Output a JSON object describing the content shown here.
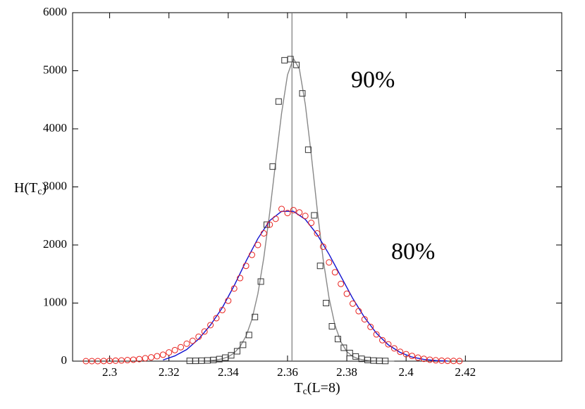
{
  "chart_data": {
    "type": "scatter",
    "xlabel": [
      "T",
      "c",
      "(L=8)"
    ],
    "ylabel": [
      "H(T",
      "c",
      ")"
    ],
    "annotations": [
      "90%",
      "80%"
    ],
    "xlim": [
      2.2875,
      2.4525
    ],
    "ylim": [
      0,
      6000
    ],
    "xticks": [
      2.3,
      2.32,
      2.34,
      2.36,
      2.38,
      2.4,
      2.42
    ],
    "yticks": [
      0,
      1000,
      2000,
      3000,
      4000,
      5000,
      6000
    ],
    "vline": 2.3615,
    "vline_color": "#777",
    "series": [
      {
        "marker": "square",
        "color": "#333",
        "x": [
          2.327,
          2.329,
          2.331,
          2.333,
          2.335,
          2.337,
          2.339,
          2.341,
          2.343,
          2.345,
          2.347,
          2.349,
          2.351,
          2.353,
          2.355,
          2.357,
          2.359,
          2.361,
          2.363,
          2.365,
          2.367,
          2.369,
          2.371,
          2.373,
          2.375,
          2.377,
          2.379,
          2.381,
          2.383,
          2.385,
          2.387,
          2.389,
          2.391,
          2.393
        ],
        "values": [
          5,
          5,
          8,
          12,
          20,
          35,
          60,
          100,
          170,
          280,
          450,
          760,
          1370,
          2350,
          3350,
          4470,
          5180,
          5200,
          5100,
          4610,
          3640,
          2510,
          1640,
          1000,
          600,
          380,
          230,
          140,
          80,
          40,
          20,
          10,
          5,
          3
        ]
      },
      {
        "marker": "circle",
        "color": "#e8201c",
        "x": [
          2.292,
          2.294,
          2.296,
          2.298,
          2.3,
          2.302,
          2.304,
          2.306,
          2.308,
          2.31,
          2.312,
          2.314,
          2.316,
          2.318,
          2.32,
          2.322,
          2.324,
          2.326,
          2.328,
          2.33,
          2.332,
          2.334,
          2.336,
          2.338,
          2.34,
          2.342,
          2.344,
          2.346,
          2.348,
          2.35,
          2.352,
          2.354,
          2.356,
          2.358,
          2.36,
          2.362,
          2.364,
          2.366,
          2.368,
          2.37,
          2.372,
          2.374,
          2.376,
          2.378,
          2.38,
          2.382,
          2.384,
          2.386,
          2.388,
          2.39,
          2.392,
          2.394,
          2.396,
          2.398,
          2.4,
          2.402,
          2.404,
          2.406,
          2.408,
          2.41,
          2.412,
          2.414,
          2.416,
          2.418
        ],
        "values": [
          0,
          0,
          0,
          2,
          5,
          8,
          12,
          18,
          25,
          35,
          50,
          65,
          85,
          110,
          150,
          190,
          240,
          300,
          350,
          420,
          510,
          620,
          740,
          880,
          1040,
          1250,
          1430,
          1640,
          1830,
          2000,
          2200,
          2350,
          2450,
          2620,
          2550,
          2600,
          2560,
          2500,
          2380,
          2200,
          1970,
          1700,
          1530,
          1330,
          1160,
          990,
          860,
          720,
          590,
          460,
          360,
          290,
          220,
          160,
          120,
          90,
          60,
          40,
          25,
          15,
          8,
          5,
          3,
          1
        ]
      }
    ],
    "curves": [
      {
        "color": "#888",
        "x": [
          2.326,
          2.328,
          2.33,
          2.332,
          2.334,
          2.336,
          2.338,
          2.34,
          2.342,
          2.344,
          2.346,
          2.348,
          2.35,
          2.352,
          2.354,
          2.356,
          2.358,
          2.36,
          2.362,
          2.364,
          2.366,
          2.368,
          2.37,
          2.372,
          2.374,
          2.376,
          2.378,
          2.38,
          2.382,
          2.384,
          2.386,
          2.388,
          2.39,
          2.392,
          2.394,
          2.396
        ],
        "values": [
          0,
          0,
          2,
          5,
          10,
          20,
          40,
          75,
          140,
          250,
          430,
          720,
          1160,
          1780,
          2560,
          3430,
          4270,
          4930,
          5210,
          5030,
          4420,
          3560,
          2620,
          1760,
          1090,
          620,
          330,
          165,
          80,
          38,
          17,
          8,
          3,
          1,
          0,
          0
        ]
      },
      {
        "color": "#1010d0",
        "x": [
          2.318,
          2.322,
          2.326,
          2.33,
          2.334,
          2.338,
          2.342,
          2.346,
          2.35,
          2.354,
          2.358,
          2.362,
          2.366,
          2.37,
          2.374,
          2.378,
          2.382,
          2.386,
          2.39,
          2.394,
          2.398,
          2.402,
          2.406,
          2.41,
          2.414
        ],
        "values": [
          20,
          90,
          200,
          380,
          620,
          920,
          1300,
          1720,
          2110,
          2420,
          2580,
          2580,
          2440,
          2180,
          1840,
          1460,
          1080,
          750,
          480,
          280,
          150,
          70,
          30,
          10,
          2
        ]
      }
    ]
  }
}
